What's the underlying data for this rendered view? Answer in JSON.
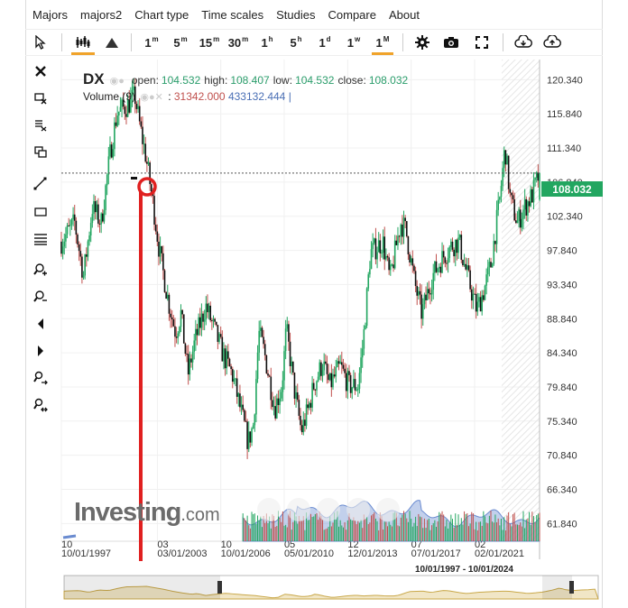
{
  "menu": [
    "Majors",
    "majors2",
    "Chart type",
    "Time scales",
    "Studies",
    "Compare",
    "About"
  ],
  "timeframes": [
    {
      "label": "1",
      "sup": "m"
    },
    {
      "label": "5",
      "sup": "m"
    },
    {
      "label": "15",
      "sup": "m"
    },
    {
      "label": "30",
      "sup": "m"
    },
    {
      "label": "1",
      "sup": "h"
    },
    {
      "label": "5",
      "sup": "h"
    },
    {
      "label": "1",
      "sup": "d"
    },
    {
      "label": "1",
      "sup": "w"
    },
    {
      "label": "1",
      "sup": "M"
    }
  ],
  "active_timeframe": "1M",
  "icons": {
    "toolbar": [
      "cursor-icon",
      "candlestick-icon",
      "area-chart-icon",
      "gear-icon",
      "camera-icon",
      "fullscreen-icon",
      "download-icon",
      "upload-icon"
    ],
    "left": [
      "close-icon",
      "crosshair-x-icon",
      "fib-icon",
      "copy-icon",
      "trendline-icon",
      "rectangle-icon",
      "hlines-icon",
      "zoom-in-icon",
      "zoom-out-icon",
      "arrow-left-icon",
      "arrow-right-icon",
      "zoom-fit-icon",
      "zoom-reset-icon"
    ]
  },
  "legend": {
    "symbol": "DX",
    "open_label": "open:",
    "open": "104.532",
    "high_label": "high:",
    "high": "108.407",
    "low_label": "low:",
    "low": "104.532",
    "close_label": "close:",
    "close": "108.032",
    "volume_label": "Volume (9)",
    "volume_sep": ":",
    "volume_value": "31342.000",
    "volume_ma": "433132.444",
    "volume_end": "|"
  },
  "watermark": {
    "brand": "Investing",
    "suffix": ".com"
  },
  "date_range": "10/01/1997 - 10/01/2024",
  "colors": {
    "up": "#22a660",
    "down": "#c0504d",
    "last_price_bg": "#22a660",
    "volume_area": "#8fa9dd",
    "annotation": "#e02020",
    "navigator_fill": "#f1e6c6",
    "navigator_line": "#c9a84a"
  },
  "chart_data": {
    "type": "candlestick",
    "symbol": "DX",
    "interval": "1M",
    "ylim": [
      59.5,
      123
    ],
    "yticks": [
      120.34,
      115.84,
      111.34,
      106.84,
      102.34,
      97.84,
      93.34,
      88.84,
      84.34,
      79.84,
      75.34,
      70.84,
      66.34,
      61.84
    ],
    "yticklabels": [
      "120.340",
      "115.840",
      "111.340",
      "106.840",
      "102.340",
      "97.840",
      "93.340",
      "88.840",
      "84.340",
      "79.840",
      "75.340",
      "70.840",
      "66.340",
      "61.840"
    ],
    "xticks": [
      {
        "label": "10",
        "sublabel": "10/01/1997",
        "t": 1997.75
      },
      {
        "label": "03",
        "sublabel": "03/01/2003",
        "t": 2003.17
      },
      {
        "label": "10",
        "sublabel": "10/01/2006",
        "t": 2006.75
      },
      {
        "label": "05",
        "sublabel": "05/01/2010",
        "t": 2010.33
      },
      {
        "label": "12",
        "sublabel": "12/01/2013",
        "t": 2013.92
      },
      {
        "label": "07",
        "sublabel": "07/01/2017",
        "t": 2017.5
      },
      {
        "label": "02",
        "sublabel": "02/01/2021",
        "t": 2021.08
      }
    ],
    "xlim": [
      1997.75,
      2024.75
    ],
    "last_price": 108.032,
    "last_price_label": "108.032",
    "close_series_anchors": [
      [
        1997.75,
        99.0
      ],
      [
        1998.5,
        101.5
      ],
      [
        1999.0,
        94.5
      ],
      [
        1999.5,
        103.5
      ],
      [
        2000.0,
        101.5
      ],
      [
        2000.5,
        110.5
      ],
      [
        2000.9,
        116.0
      ],
      [
        2001.5,
        117.0
      ],
      [
        2001.9,
        118.2
      ],
      [
        2002.2,
        114.0
      ],
      [
        2002.5,
        110.5
      ],
      [
        2002.9,
        104.5
      ],
      [
        2003.3,
        97.5
      ],
      [
        2003.8,
        91.0
      ],
      [
        2004.2,
        87.0
      ],
      [
        2004.5,
        89.5
      ],
      [
        2004.9,
        81.5
      ],
      [
        2005.3,
        86.0
      ],
      [
        2005.9,
        90.5
      ],
      [
        2006.3,
        88.0
      ],
      [
        2006.9,
        84.0
      ],
      [
        2007.4,
        81.5
      ],
      [
        2007.9,
        76.5
      ],
      [
        2008.3,
        72.5
      ],
      [
        2008.6,
        75.0
      ],
      [
        2008.9,
        87.0
      ],
      [
        2009.2,
        84.5
      ],
      [
        2009.8,
        77.0
      ],
      [
        2010.2,
        80.0
      ],
      [
        2010.45,
        87.5
      ],
      [
        2010.9,
        79.5
      ],
      [
        2011.3,
        74.0
      ],
      [
        2011.7,
        77.0
      ],
      [
        2012.0,
        80.0
      ],
      [
        2012.5,
        83.0
      ],
      [
        2012.9,
        80.0
      ],
      [
        2013.5,
        82.5
      ],
      [
        2014.0,
        80.0
      ],
      [
        2014.5,
        80.0
      ],
      [
        2014.8,
        86.0
      ],
      [
        2015.2,
        97.5
      ],
      [
        2015.9,
        99.0
      ],
      [
        2016.3,
        94.0
      ],
      [
        2016.9,
        101.5
      ],
      [
        2017.2,
        100.5
      ],
      [
        2017.7,
        93.5
      ],
      [
        2018.1,
        89.5
      ],
      [
        2018.7,
        94.5
      ],
      [
        2019.3,
        97.0
      ],
      [
        2019.8,
        98.5
      ],
      [
        2020.2,
        99.0
      ],
      [
        2020.5,
        96.0
      ],
      [
        2020.9,
        92.5
      ],
      [
        2021.2,
        90.0
      ],
      [
        2021.6,
        92.5
      ],
      [
        2022.0,
        96.0
      ],
      [
        2022.5,
        104.5
      ],
      [
        2022.8,
        111.5
      ],
      [
        2023.1,
        104.5
      ],
      [
        2023.5,
        101.5
      ],
      [
        2023.9,
        103.5
      ],
      [
        2024.3,
        105.0
      ],
      [
        2024.75,
        108.032
      ]
    ],
    "volume_visible_from": 2008.0,
    "volume_label": "Volume (9)"
  }
}
